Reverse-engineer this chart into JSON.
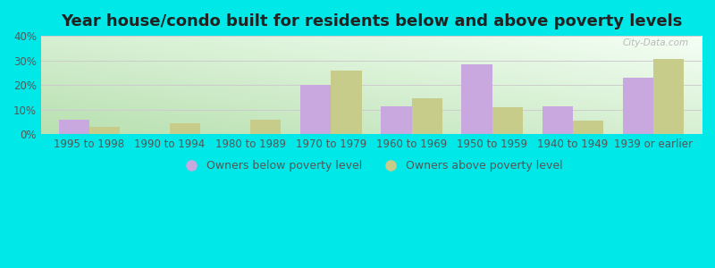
{
  "title": "Year house/condo built for residents below and above poverty levels",
  "categories": [
    "1995 to 1998",
    "1990 to 1994",
    "1980 to 1989",
    "1970 to 1979",
    "1960 to 1969",
    "1950 to 1959",
    "1940 to 1949",
    "1939 or earlier"
  ],
  "below_poverty": [
    6.0,
    0.0,
    0.0,
    20.0,
    11.5,
    28.5,
    11.5,
    23.0
  ],
  "above_poverty": [
    3.0,
    4.5,
    6.0,
    26.0,
    14.5,
    11.0,
    5.5,
    30.5
  ],
  "below_color": "#c9a8e0",
  "above_color": "#c8cc8a",
  "ylim": [
    0,
    40
  ],
  "yticks": [
    0,
    10,
    20,
    30,
    40
  ],
  "outer_bg": "#00e8e8",
  "legend_below_label": "Owners below poverty level",
  "legend_above_label": "Owners above poverty level",
  "bar_width": 0.38,
  "title_fontsize": 13,
  "tick_fontsize": 8.5,
  "legend_fontsize": 9,
  "watermark": "City-Data.com"
}
